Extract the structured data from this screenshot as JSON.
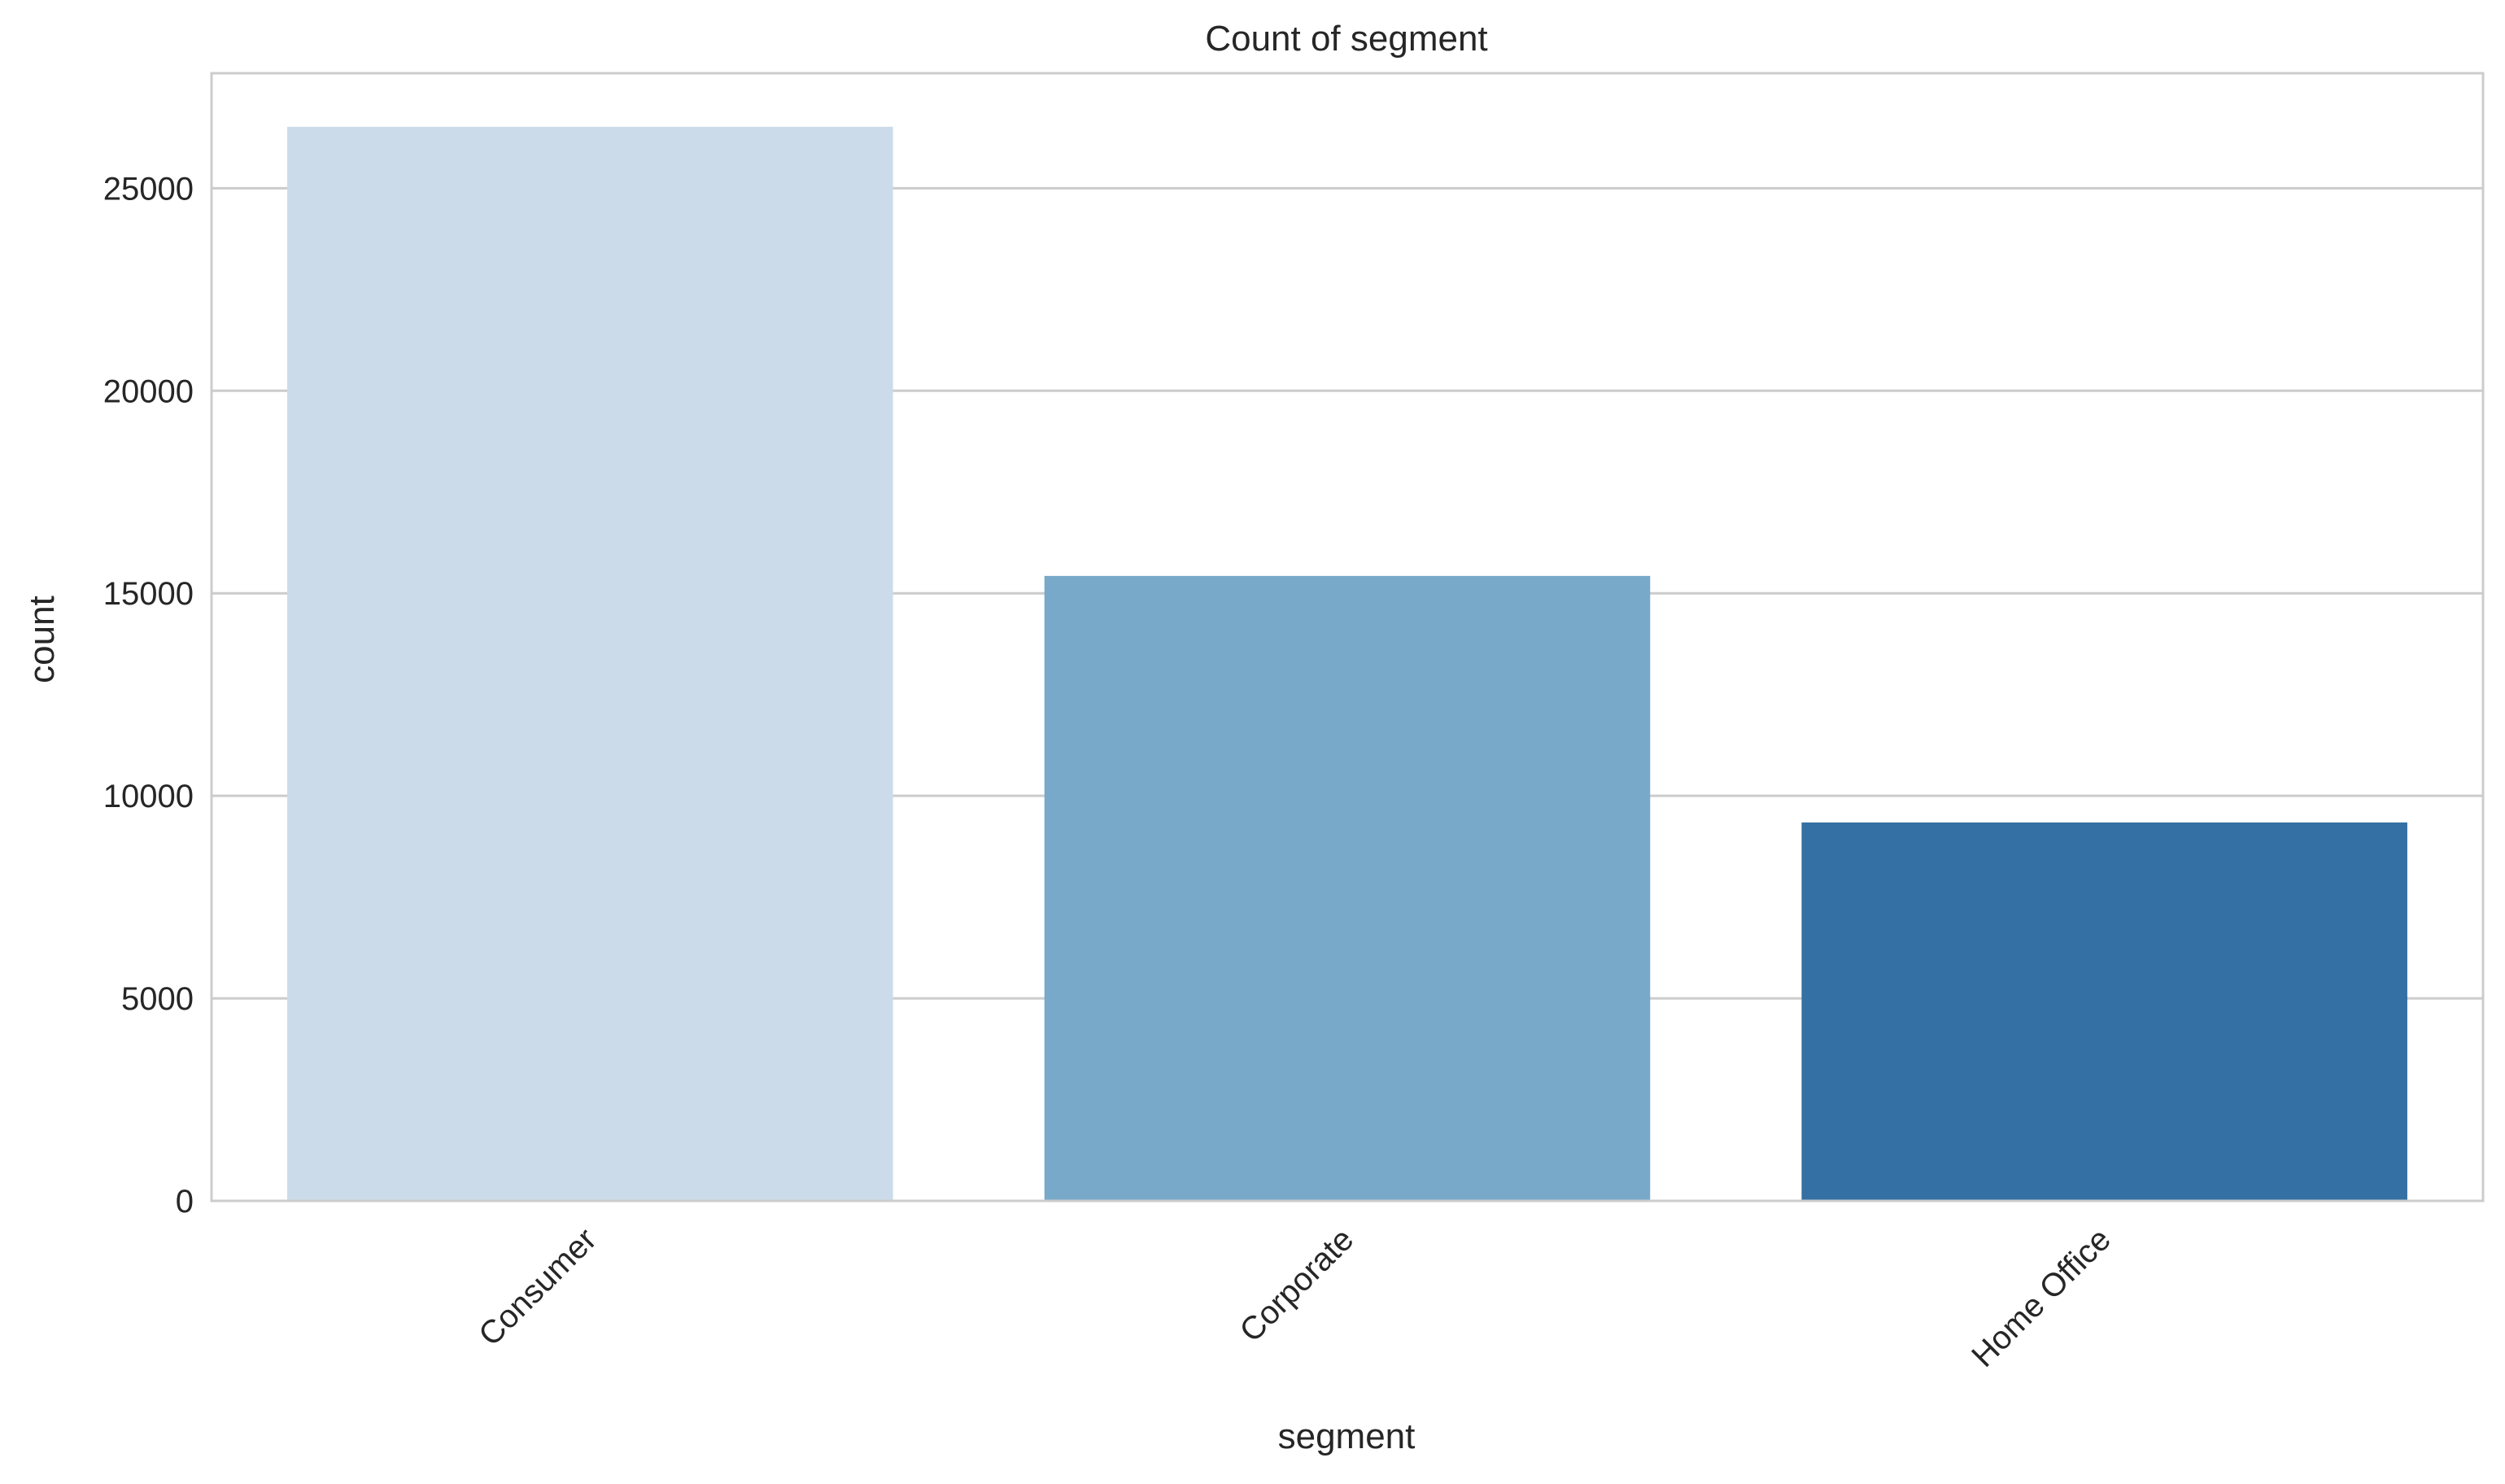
{
  "chart_data": {
    "type": "bar",
    "title": "Count of segment",
    "xlabel": "segment",
    "ylabel": "count",
    "categories": [
      "Consumer",
      "Corporate",
      "Home Office"
    ],
    "values": [
      26518,
      15429,
      9343
    ],
    "bar_colors": [
      "#cbdbe9",
      "#78a9c8",
      "#3470a3"
    ],
    "ylim": [
      0,
      27840
    ],
    "yticks": [
      0,
      5000,
      10000,
      15000,
      20000,
      25000
    ],
    "ytick_labels": [
      "0",
      "5000",
      "10000",
      "15000",
      "20000",
      "25000"
    ],
    "grid": true,
    "grid_color": "#cccccc",
    "spine_color": "#cccccc",
    "text_color": "#262626"
  }
}
